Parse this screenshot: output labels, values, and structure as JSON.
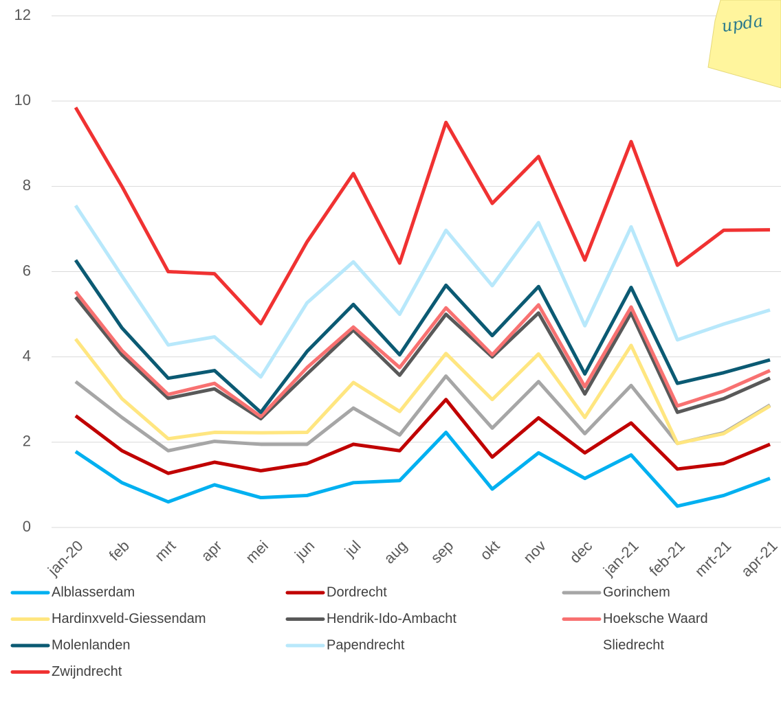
{
  "note": "upda",
  "chart_data": {
    "type": "line",
    "categories": [
      "jan-20",
      "feb",
      "mrt",
      "apr",
      "mei",
      "jun",
      "jul",
      "aug",
      "sep",
      "okt",
      "nov",
      "dec",
      "jan-21",
      "feb-21",
      "mrt-21",
      "apr-21"
    ],
    "ylim": [
      0,
      12
    ],
    "yticks": [
      0,
      2,
      4,
      6,
      8,
      10,
      12
    ],
    "grid": true,
    "series": [
      {
        "name": "Alblasserdam",
        "color": "#00b0f0",
        "values": [
          1.78,
          1.05,
          0.6,
          1.0,
          0.7,
          0.75,
          1.05,
          1.1,
          2.23,
          0.9,
          1.75,
          1.15,
          1.7,
          0.5,
          0.75,
          1.15
        ]
      },
      {
        "name": "Dordrecht",
        "color": "#c00000",
        "values": [
          2.62,
          1.8,
          1.27,
          1.53,
          1.33,
          1.5,
          1.95,
          1.8,
          3.0,
          1.65,
          2.57,
          1.75,
          2.45,
          1.37,
          1.5,
          1.95
        ]
      },
      {
        "name": "Gorinchem",
        "color": "#a6a6a6",
        "values": [
          3.42,
          2.58,
          1.8,
          2.02,
          1.95,
          1.95,
          2.8,
          2.17,
          3.55,
          2.33,
          3.42,
          2.2,
          3.33,
          1.97,
          2.22,
          2.87
        ]
      },
      {
        "name": "Hardinxveld-Giessendam",
        "color": "#ffe680",
        "values": [
          4.42,
          3.02,
          2.08,
          2.23,
          2.22,
          2.23,
          3.4,
          2.72,
          4.08,
          3.0,
          4.07,
          2.58,
          4.27,
          1.97,
          2.2,
          2.85
        ]
      },
      {
        "name": "Hendrik-Ido-Ambacht",
        "color": "#595959",
        "values": [
          5.4,
          4.05,
          3.03,
          3.25,
          2.55,
          3.6,
          4.63,
          3.57,
          5.0,
          4.0,
          5.03,
          3.13,
          5.03,
          2.7,
          3.02,
          3.5
        ]
      },
      {
        "name": "Hoeksche Waard",
        "color": "#f87171",
        "values": [
          5.53,
          4.15,
          3.12,
          3.38,
          2.6,
          3.75,
          4.7,
          3.75,
          5.15,
          4.05,
          5.22,
          3.3,
          5.17,
          2.85,
          3.2,
          3.68
        ]
      },
      {
        "name": "Molenlanden",
        "color": "#0b5a73",
        "values": [
          6.27,
          4.68,
          3.5,
          3.68,
          2.7,
          4.13,
          5.23,
          4.05,
          5.68,
          4.5,
          5.65,
          3.6,
          5.63,
          3.38,
          3.63,
          3.93
        ]
      },
      {
        "name": "Papendrecht",
        "color": "#b8e8fb",
        "values": [
          7.55,
          5.9,
          4.28,
          4.47,
          3.53,
          5.27,
          6.23,
          5.0,
          6.97,
          5.67,
          7.15,
          4.73,
          7.05,
          4.4,
          4.77,
          5.1
        ]
      },
      {
        "name": "Sliedrecht",
        "color": null,
        "values": [
          null,
          null,
          null,
          null,
          null,
          null,
          null,
          null,
          null,
          null,
          null,
          null,
          null,
          null,
          null,
          null
        ]
      },
      {
        "name": "Zwijndrecht",
        "color": "#f03232",
        "values": [
          9.85,
          8.0,
          6.0,
          5.95,
          4.78,
          6.7,
          8.3,
          6.2,
          9.5,
          7.6,
          8.7,
          6.27,
          9.05,
          6.15,
          6.97,
          6.98
        ]
      }
    ]
  }
}
